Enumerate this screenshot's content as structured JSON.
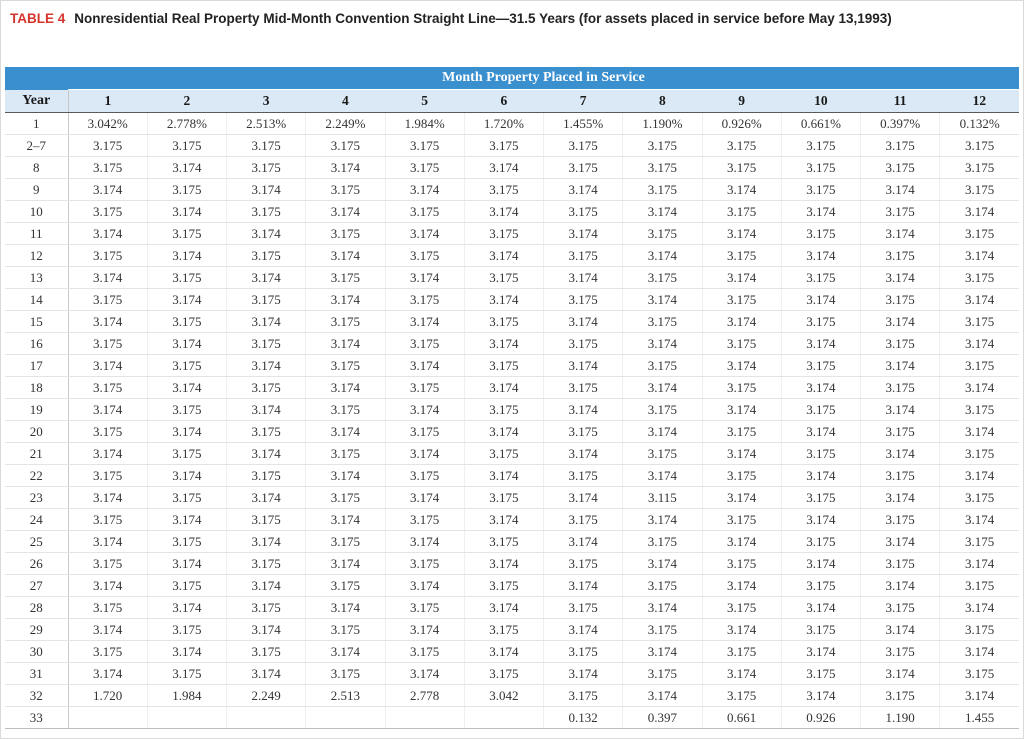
{
  "title": {
    "label": "TABLE 4",
    "text": "Nonresidential Real Property Mid-Month Convention Straight Line—31.5 Years (for assets placed in service before May 13,1993)"
  },
  "table": {
    "group_header": "Month Property Placed in Service",
    "year_header": "Year",
    "month_headers": [
      "1",
      "2",
      "3",
      "4",
      "5",
      "6",
      "7",
      "8",
      "9",
      "10",
      "11",
      "12"
    ],
    "rows": [
      {
        "year": "1",
        "values": [
          "3.042%",
          "2.778%",
          "2.513%",
          "2.249%",
          "1.984%",
          "1.720%",
          "1.455%",
          "1.190%",
          "0.926%",
          "0.661%",
          "0.397%",
          "0.132%"
        ]
      },
      {
        "year": "2–7",
        "values": [
          "3.175",
          "3.175",
          "3.175",
          "3.175",
          "3.175",
          "3.175",
          "3.175",
          "3.175",
          "3.175",
          "3.175",
          "3.175",
          "3.175"
        ]
      },
      {
        "year": "8",
        "values": [
          "3.175",
          "3.174",
          "3.175",
          "3.174",
          "3.175",
          "3.174",
          "3.175",
          "3.175",
          "3.175",
          "3.175",
          "3.175",
          "3.175"
        ]
      },
      {
        "year": "9",
        "values": [
          "3.174",
          "3.175",
          "3.174",
          "3.175",
          "3.174",
          "3.175",
          "3.174",
          "3.175",
          "3.174",
          "3.175",
          "3.174",
          "3.175"
        ]
      },
      {
        "year": "10",
        "values": [
          "3.175",
          "3.174",
          "3.175",
          "3.174",
          "3.175",
          "3.174",
          "3.175",
          "3.174",
          "3.175",
          "3.174",
          "3.175",
          "3.174"
        ]
      },
      {
        "year": "11",
        "values": [
          "3.174",
          "3.175",
          "3.174",
          "3.175",
          "3.174",
          "3.175",
          "3.174",
          "3.175",
          "3.174",
          "3.175",
          "3.174",
          "3.175"
        ]
      },
      {
        "year": "12",
        "values": [
          "3.175",
          "3.174",
          "3.175",
          "3.174",
          "3.175",
          "3.174",
          "3.175",
          "3.174",
          "3.175",
          "3.174",
          "3.175",
          "3.174"
        ]
      },
      {
        "year": "13",
        "values": [
          "3.174",
          "3.175",
          "3.174",
          "3.175",
          "3.174",
          "3.175",
          "3.174",
          "3.175",
          "3.174",
          "3.175",
          "3.174",
          "3.175"
        ]
      },
      {
        "year": "14",
        "values": [
          "3.175",
          "3.174",
          "3.175",
          "3.174",
          "3.175",
          "3.174",
          "3.175",
          "3.174",
          "3.175",
          "3.174",
          "3.175",
          "3.174"
        ]
      },
      {
        "year": "15",
        "values": [
          "3.174",
          "3.175",
          "3.174",
          "3.175",
          "3.174",
          "3.175",
          "3.174",
          "3.175",
          "3.174",
          "3.175",
          "3.174",
          "3.175"
        ]
      },
      {
        "year": "16",
        "values": [
          "3.175",
          "3.174",
          "3.175",
          "3.174",
          "3.175",
          "3.174",
          "3.175",
          "3.174",
          "3.175",
          "3.174",
          "3.175",
          "3.174"
        ]
      },
      {
        "year": "17",
        "values": [
          "3.174",
          "3.175",
          "3.174",
          "3.175",
          "3.174",
          "3.175",
          "3.174",
          "3.175",
          "3.174",
          "3.175",
          "3.174",
          "3.175"
        ]
      },
      {
        "year": "18",
        "values": [
          "3.175",
          "3.174",
          "3.175",
          "3.174",
          "3.175",
          "3.174",
          "3.175",
          "3.174",
          "3.175",
          "3.174",
          "3.175",
          "3.174"
        ]
      },
      {
        "year": "19",
        "values": [
          "3.174",
          "3.175",
          "3.174",
          "3.175",
          "3.174",
          "3.175",
          "3.174",
          "3.175",
          "3.174",
          "3.175",
          "3.174",
          "3.175"
        ]
      },
      {
        "year": "20",
        "values": [
          "3.175",
          "3.174",
          "3.175",
          "3.174",
          "3.175",
          "3.174",
          "3.175",
          "3.174",
          "3.175",
          "3.174",
          "3.175",
          "3.174"
        ]
      },
      {
        "year": "21",
        "values": [
          "3.174",
          "3.175",
          "3.174",
          "3.175",
          "3.174",
          "3.175",
          "3.174",
          "3.175",
          "3.174",
          "3.175",
          "3.174",
          "3.175"
        ]
      },
      {
        "year": "22",
        "values": [
          "3.175",
          "3.174",
          "3.175",
          "3.174",
          "3.175",
          "3.174",
          "3.175",
          "3.174",
          "3.175",
          "3.174",
          "3.175",
          "3.174"
        ]
      },
      {
        "year": "23",
        "values": [
          "3.174",
          "3.175",
          "3.174",
          "3.175",
          "3.174",
          "3.175",
          "3.174",
          "3.115",
          "3.174",
          "3.175",
          "3.174",
          "3.175"
        ]
      },
      {
        "year": "24",
        "values": [
          "3.175",
          "3.174",
          "3.175",
          "3.174",
          "3.175",
          "3.174",
          "3.175",
          "3.174",
          "3.175",
          "3.174",
          "3.175",
          "3.174"
        ]
      },
      {
        "year": "25",
        "values": [
          "3.174",
          "3.175",
          "3.174",
          "3.175",
          "3.174",
          "3.175",
          "3.174",
          "3.175",
          "3.174",
          "3.175",
          "3.174",
          "3.175"
        ]
      },
      {
        "year": "26",
        "values": [
          "3.175",
          "3.174",
          "3.175",
          "3.174",
          "3.175",
          "3.174",
          "3.175",
          "3.174",
          "3.175",
          "3.174",
          "3.175",
          "3.174"
        ]
      },
      {
        "year": "27",
        "values": [
          "3.174",
          "3.175",
          "3.174",
          "3.175",
          "3.174",
          "3.175",
          "3.174",
          "3.175",
          "3.174",
          "3.175",
          "3.174",
          "3.175"
        ]
      },
      {
        "year": "28",
        "values": [
          "3.175",
          "3.174",
          "3.175",
          "3.174",
          "3.175",
          "3.174",
          "3.175",
          "3.174",
          "3.175",
          "3.174",
          "3.175",
          "3.174"
        ]
      },
      {
        "year": "29",
        "values": [
          "3.174",
          "3.175",
          "3.174",
          "3.175",
          "3.174",
          "3.175",
          "3.174",
          "3.175",
          "3.174",
          "3.175",
          "3.174",
          "3.175"
        ]
      },
      {
        "year": "30",
        "values": [
          "3.175",
          "3.174",
          "3.175",
          "3.174",
          "3.175",
          "3.174",
          "3.175",
          "3.174",
          "3.175",
          "3.174",
          "3.175",
          "3.174"
        ]
      },
      {
        "year": "31",
        "values": [
          "3.174",
          "3.175",
          "3.174",
          "3.175",
          "3.174",
          "3.175",
          "3.174",
          "3.175",
          "3.174",
          "3.175",
          "3.174",
          "3.175"
        ]
      },
      {
        "year": "32",
        "values": [
          "1.720",
          "1.984",
          "2.249",
          "2.513",
          "2.778",
          "3.042",
          "3.175",
          "3.174",
          "3.175",
          "3.174",
          "3.175",
          "3.174"
        ]
      },
      {
        "year": "33",
        "values": [
          "",
          "",
          "",
          "",
          "",
          "",
          "0.132",
          "0.397",
          "0.661",
          "0.926",
          "1.190",
          "1.455"
        ]
      }
    ]
  },
  "colors": {
    "title_label": "#d6342c",
    "header_band": "#3a8fcf",
    "column_header_bg": "#dbe9f6"
  }
}
